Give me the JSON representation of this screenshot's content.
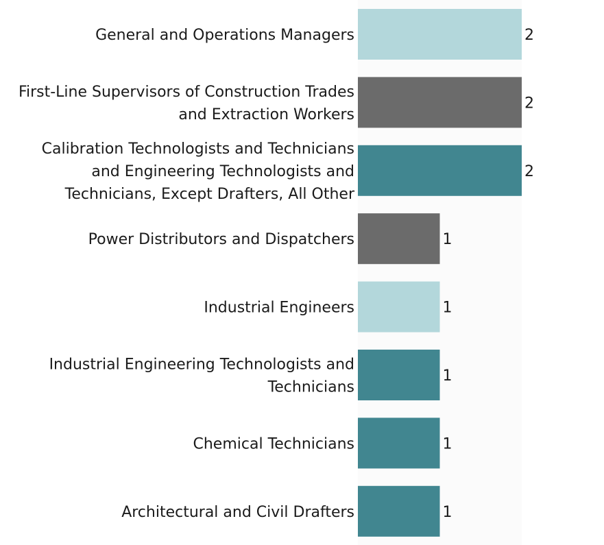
{
  "chart_data": {
    "type": "bar",
    "orientation": "horizontal",
    "title": "",
    "xlabel": "",
    "ylabel": "",
    "xlim": [
      0,
      2
    ],
    "grid": false,
    "legend": "none",
    "show_value_labels": true,
    "categories": [
      "General and Operations Managers",
      "First-Line Supervisors of Construction Trades and Extraction Workers",
      "Calibration Technologists and Technicians and Engineering Technologists and Technicians, Except Drafters, All Other",
      "Power Distributors and Dispatchers",
      "Industrial Engineers",
      "Industrial Engineering Technologists and Technicians",
      "Chemical Technicians",
      "Architectural and Civil Drafters"
    ],
    "category_label_lines": [
      [
        "General and Operations Managers"
      ],
      [
        "First-Line Supervisors of Construction Trades",
        "and Extraction Workers"
      ],
      [
        "Calibration Technologists and Technicians",
        "and Engineering Technologists and",
        "Technicians, Except Drafters, All Other"
      ],
      [
        "Power Distributors and Dispatchers"
      ],
      [
        "Industrial Engineers"
      ],
      [
        "Industrial Engineering Technologists and",
        "Technicians"
      ],
      [
        "Chemical Technicians"
      ],
      [
        "Architectural and Civil Drafters"
      ]
    ],
    "values": [
      2,
      2,
      2,
      1,
      1,
      1,
      1,
      1
    ],
    "value_labels": [
      "2",
      "2",
      "2",
      "1",
      "1",
      "1",
      "1",
      "1"
    ],
    "bar_colors": [
      "#b3d7db",
      "#6b6b6b",
      "#418690",
      "#6b6b6b",
      "#b3d7db",
      "#418690",
      "#418690",
      "#418690"
    ]
  }
}
